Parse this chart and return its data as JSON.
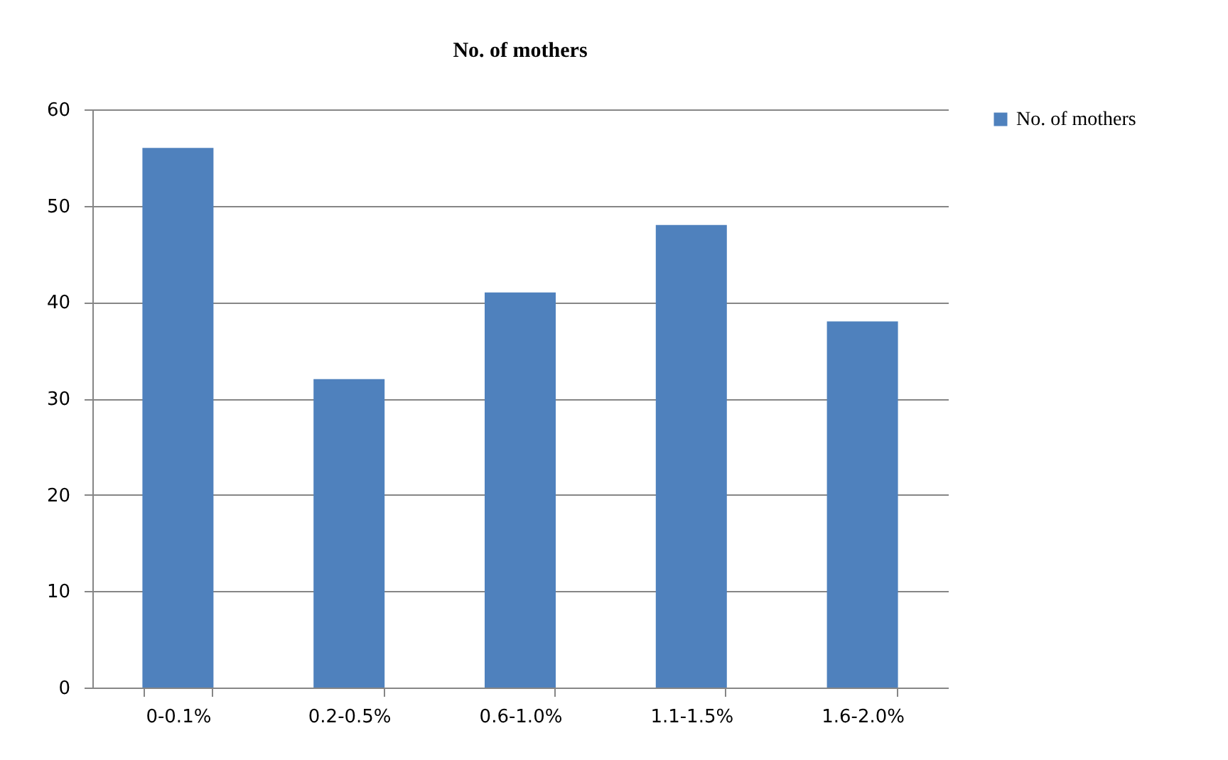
{
  "chart_data": {
    "type": "bar",
    "title": "No. of mothers",
    "categories": [
      "0-0.1%",
      "0.2-0.5%",
      "0.6-1.0%",
      "1.1-1.5%",
      "1.6-2.0%"
    ],
    "series": [
      {
        "name": "No. of mothers",
        "color": "#4f81bd",
        "values": [
          56,
          32,
          41,
          48,
          38
        ]
      }
    ],
    "ylim": [
      0,
      60
    ],
    "yticks": [
      0,
      10,
      20,
      30,
      40,
      50,
      60
    ],
    "grid": "y",
    "legend": "right"
  }
}
